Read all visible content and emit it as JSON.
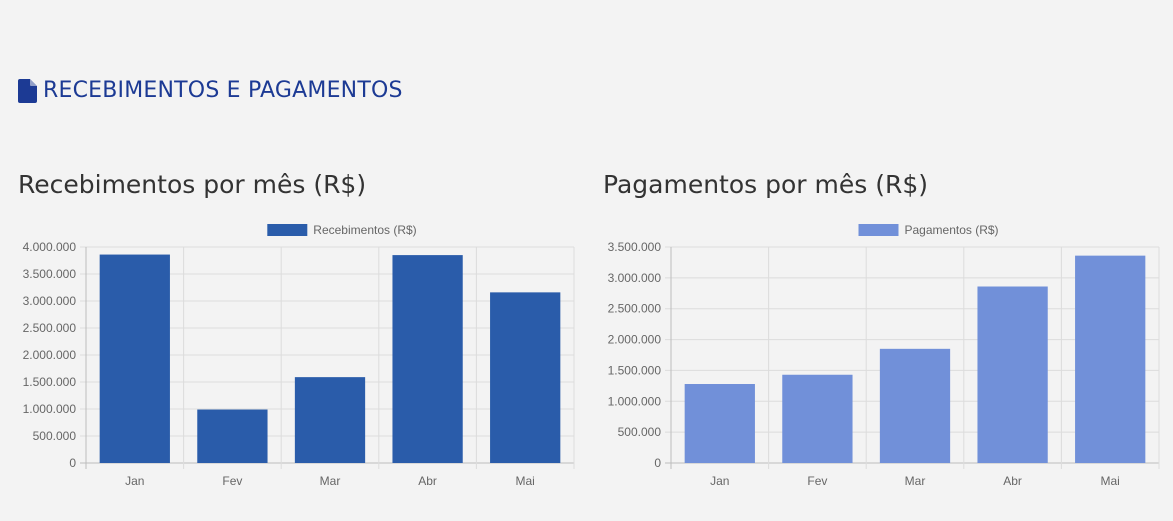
{
  "header": {
    "title": "RECEBIMENTOS E PAGAMENTOS",
    "icon": "document-icon",
    "color": "#1c3a94"
  },
  "chart_data": [
    {
      "type": "bar",
      "title": "Recebimentos por mês (R$)",
      "categories": [
        "Jan",
        "Fev",
        "Mar",
        "Abr",
        "Mai"
      ],
      "series": [
        {
          "name": "Recebimentos (R$)",
          "values": [
            3860000,
            990000,
            1590000,
            3850000,
            3160000
          ],
          "color": "#2a5caa"
        }
      ],
      "ylim": [
        0,
        4000000
      ],
      "yticks": [
        {
          "value": 0,
          "label": "0"
        },
        {
          "value": 500000,
          "label": "500.000"
        },
        {
          "value": 1000000,
          "label": "1.000.000"
        },
        {
          "value": 1500000,
          "label": "1.500.000"
        },
        {
          "value": 2000000,
          "label": "2.000.000"
        },
        {
          "value": 2500000,
          "label": "2.500.000"
        },
        {
          "value": 3000000,
          "label": "3.000.000"
        },
        {
          "value": 3500000,
          "label": "3.500.000"
        },
        {
          "value": 4000000,
          "label": "4.000.000"
        }
      ],
      "grid": true,
      "legend": "top"
    },
    {
      "type": "bar",
      "title": "Pagamentos por mês (R$)",
      "categories": [
        "Jan",
        "Fev",
        "Mar",
        "Abr",
        "Mai"
      ],
      "series": [
        {
          "name": "Pagamentos (R$)",
          "values": [
            1280000,
            1430000,
            1850000,
            2860000,
            3360000
          ],
          "color": "#7190d9"
        }
      ],
      "ylim": [
        0,
        3500000
      ],
      "yticks": [
        {
          "value": 0,
          "label": "0"
        },
        {
          "value": 500000,
          "label": "500.000"
        },
        {
          "value": 1000000,
          "label": "1.000.000"
        },
        {
          "value": 1500000,
          "label": "1.500.000"
        },
        {
          "value": 2000000,
          "label": "2.000.000"
        },
        {
          "value": 2500000,
          "label": "2.500.000"
        },
        {
          "value": 3000000,
          "label": "3.000.000"
        },
        {
          "value": 3500000,
          "label": "3.500.000"
        }
      ],
      "grid": true,
      "legend": "top"
    }
  ]
}
